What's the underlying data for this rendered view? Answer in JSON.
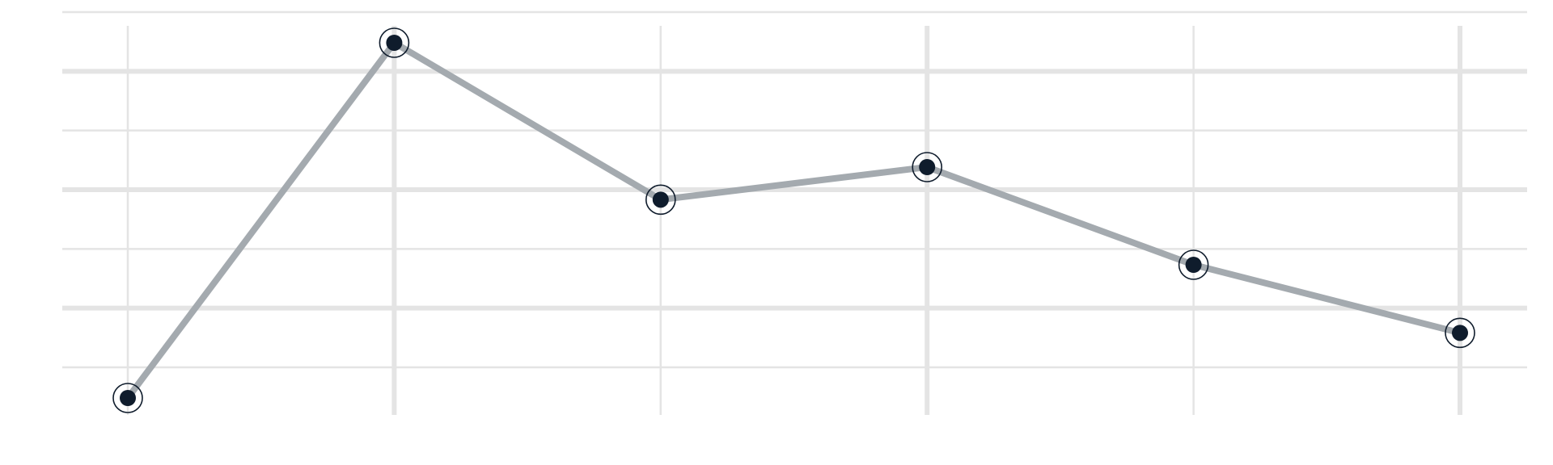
{
  "chart_data": {
    "type": "line",
    "title": "",
    "xlabel": "",
    "ylabel": "",
    "x": [
      0,
      1,
      2,
      3,
      4,
      5
    ],
    "series": [
      {
        "values": [
          6.6,
          0.6,
          3.25,
          2.7,
          4.35,
          5.5
        ]
      }
    ],
    "xlim": [
      -0.25,
      5.25
    ],
    "ylim": [
      6.95,
      -0.05
    ],
    "grid": true,
    "tick_labels_visible": false,
    "colors": {
      "line": "#a4aaaf",
      "marker": "#0f1c2c",
      "marker_ring": "#0f1c2c",
      "grid": "#e4e4e4"
    }
  }
}
